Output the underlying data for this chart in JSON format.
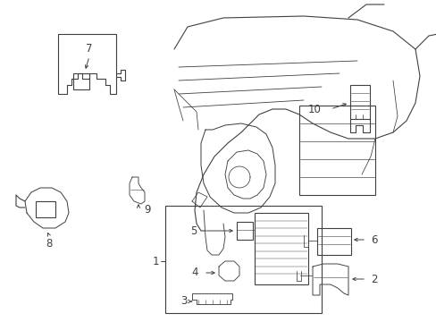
{
  "bg_color": "#ffffff",
  "line_color": "#404040",
  "fig_width": 4.89,
  "fig_height": 3.6,
  "dpi": 100,
  "label_fontsize": 8.5,
  "arrow_lw": 0.7,
  "draw_lw": 0.8
}
